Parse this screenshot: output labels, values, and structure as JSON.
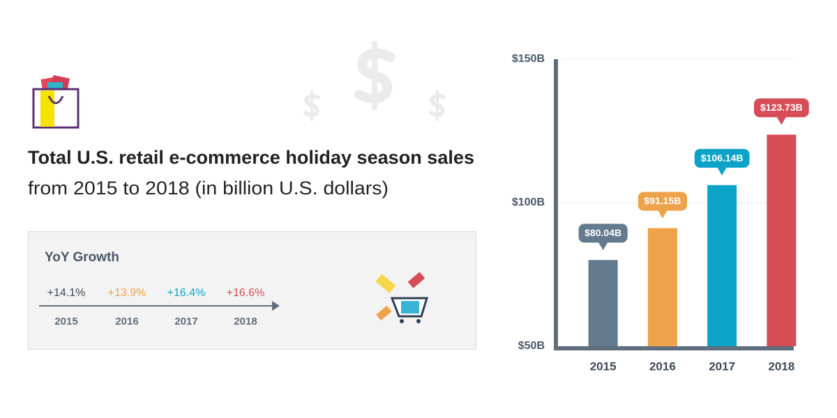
{
  "chart_data": {
    "type": "bar",
    "title": "Total U.S. retail e-commerce holiday season sales",
    "subtitle": "from 2015 to 2018 (in billion U.S. dollars)",
    "categories": [
      "2015",
      "2016",
      "2017",
      "2018"
    ],
    "values": [
      80.04,
      91.15,
      106.14,
      123.73
    ],
    "value_labels": [
      "$80.04B",
      "$91.15B",
      "$106.14B",
      "$123.73B"
    ],
    "colors": [
      "#647a8f",
      "#eea24a",
      "#0ca3c9",
      "#d64d57"
    ],
    "ylim": [
      50,
      150
    ],
    "yticks": [
      {
        "value": 50,
        "label": "$50B"
      },
      {
        "value": 100,
        "label": "$100B"
      },
      {
        "value": 150,
        "label": "$150B"
      }
    ],
    "grid": true
  },
  "yoy_growth": {
    "title": "YoY Growth",
    "labels": [
      "+14.1%",
      "+13.9%",
      "+16.4%",
      "+16.6%"
    ],
    "categories": [
      "2015",
      "2016",
      "2017",
      "2018"
    ],
    "colors": [
      "#3d4a57",
      "#eea24a",
      "#0ca3c9",
      "#d64d57"
    ]
  }
}
